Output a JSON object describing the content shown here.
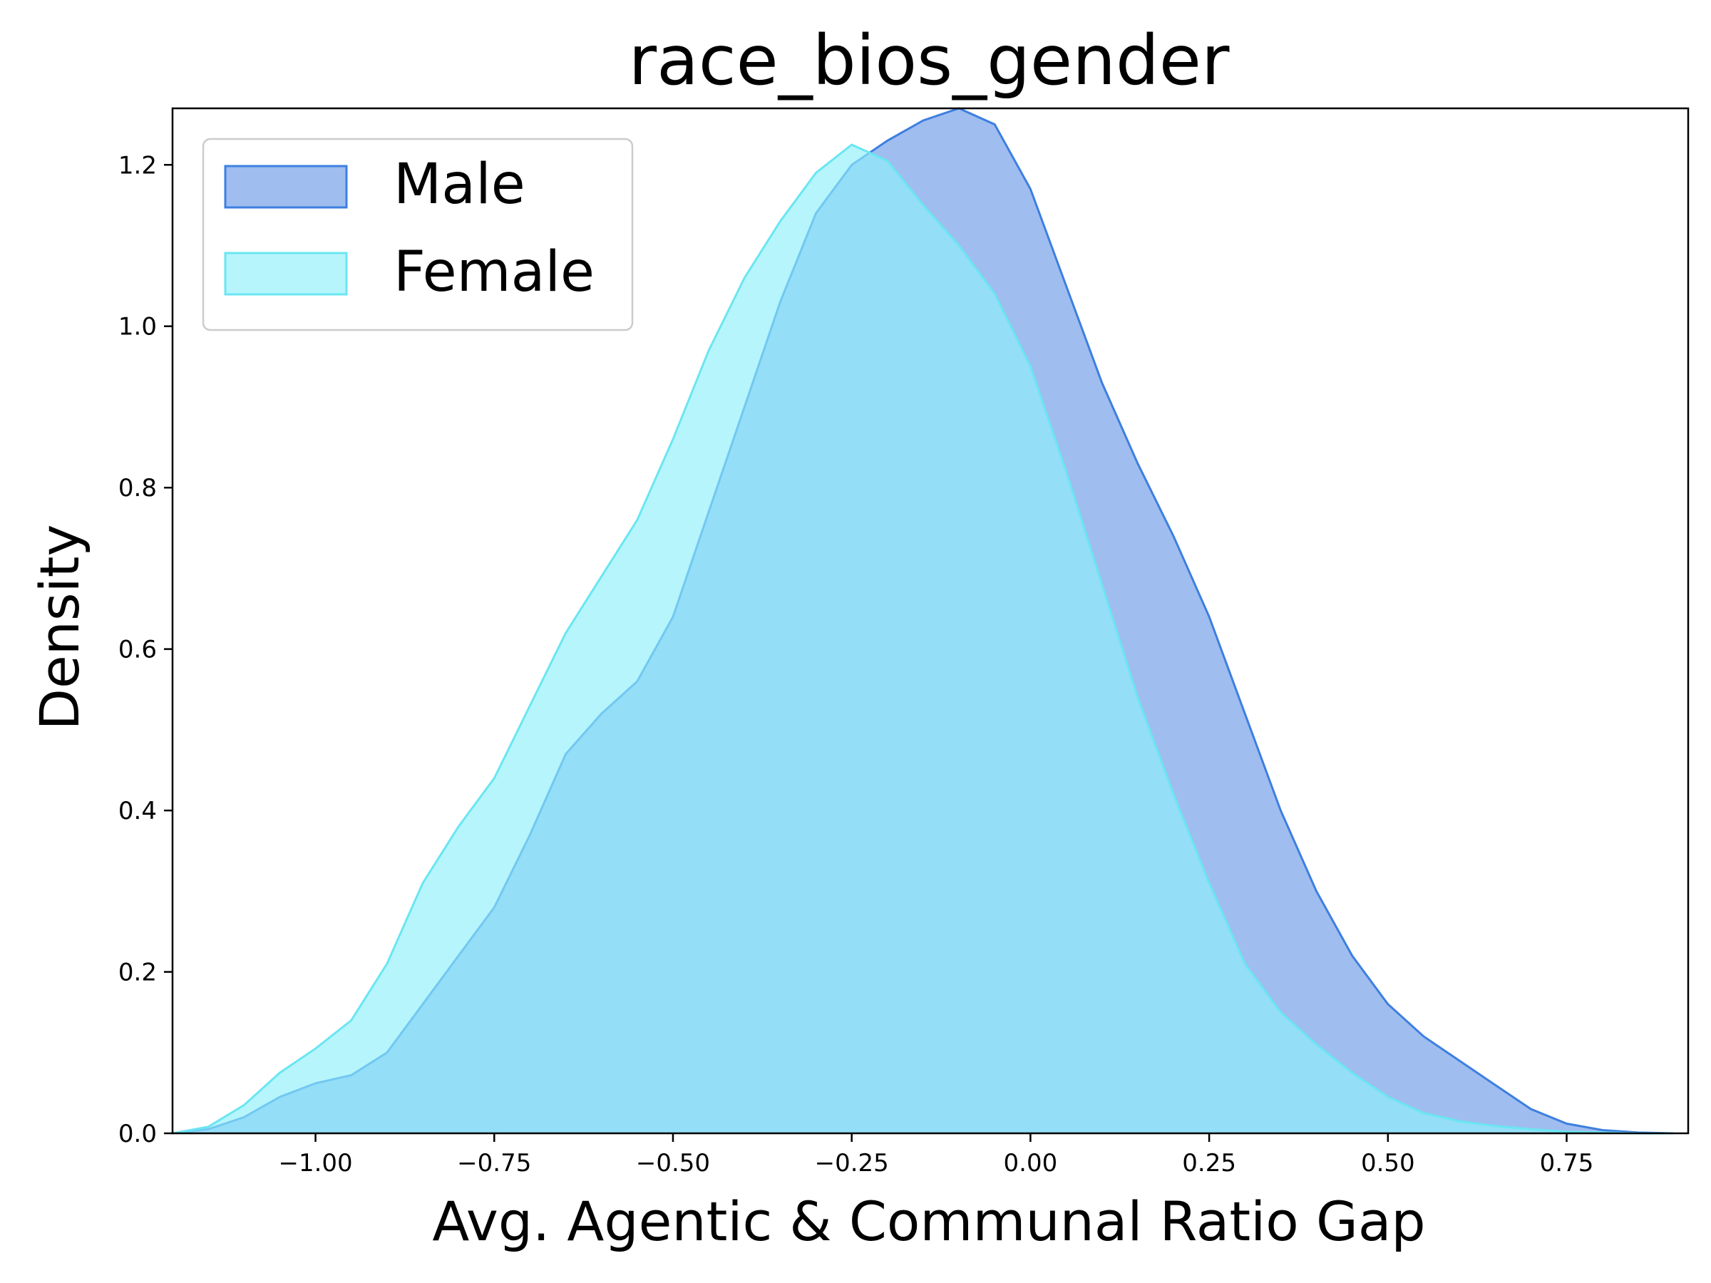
{
  "chart_data": {
    "type": "area",
    "title": "race_bios_gender",
    "xlabel": "Avg. Agentic & Communal Ratio Gap",
    "ylabel": "Density",
    "xlim": [
      -1.2,
      0.92
    ],
    "ylim": [
      0,
      1.27
    ],
    "xticks": [
      -1.0,
      -0.75,
      -0.5,
      -0.25,
      0.0,
      0.25,
      0.5,
      0.75
    ],
    "xtick_labels": [
      "−1.00",
      "−0.75",
      "−0.50",
      "−0.25",
      "0.00",
      "0.25",
      "0.50",
      "0.75"
    ],
    "yticks": [
      0.0,
      0.2,
      0.4,
      0.6,
      0.8,
      1.0,
      1.2
    ],
    "ytick_labels": [
      "0.0",
      "0.2",
      "0.4",
      "0.6",
      "0.8",
      "1.0",
      "1.2"
    ],
    "grid": false,
    "legend": {
      "position": "top-left"
    },
    "series": [
      {
        "name": "Male",
        "fill": "#6d9ae6",
        "stroke": "#3d7fe0",
        "points": [
          [
            -1.2,
            0.0
          ],
          [
            -1.15,
            0.005
          ],
          [
            -1.1,
            0.02
          ],
          [
            -1.05,
            0.045
          ],
          [
            -1.0,
            0.062
          ],
          [
            -0.95,
            0.072
          ],
          [
            -0.9,
            0.1
          ],
          [
            -0.85,
            0.16
          ],
          [
            -0.8,
            0.22
          ],
          [
            -0.75,
            0.28
          ],
          [
            -0.7,
            0.37
          ],
          [
            -0.65,
            0.47
          ],
          [
            -0.6,
            0.52
          ],
          [
            -0.55,
            0.56
          ],
          [
            -0.5,
            0.64
          ],
          [
            -0.45,
            0.77
          ],
          [
            -0.4,
            0.9
          ],
          [
            -0.35,
            1.03
          ],
          [
            -0.3,
            1.14
          ],
          [
            -0.25,
            1.2
          ],
          [
            -0.2,
            1.23
          ],
          [
            -0.15,
            1.255
          ],
          [
            -0.1,
            1.27
          ],
          [
            -0.05,
            1.25
          ],
          [
            0.0,
            1.17
          ],
          [
            0.05,
            1.05
          ],
          [
            0.1,
            0.93
          ],
          [
            0.15,
            0.83
          ],
          [
            0.2,
            0.74
          ],
          [
            0.25,
            0.64
          ],
          [
            0.3,
            0.52
          ],
          [
            0.35,
            0.4
          ],
          [
            0.4,
            0.3
          ],
          [
            0.45,
            0.22
          ],
          [
            0.5,
            0.16
          ],
          [
            0.55,
            0.12
          ],
          [
            0.6,
            0.09
          ],
          [
            0.65,
            0.06
          ],
          [
            0.7,
            0.03
          ],
          [
            0.75,
            0.012
          ],
          [
            0.8,
            0.004
          ],
          [
            0.85,
            0.001
          ],
          [
            0.9,
            0.0
          ]
        ]
      },
      {
        "name": "Female",
        "fill": "#8ff0fa",
        "stroke": "#6ae6f2",
        "points": [
          [
            -1.2,
            0.0
          ],
          [
            -1.15,
            0.008
          ],
          [
            -1.1,
            0.035
          ],
          [
            -1.05,
            0.075
          ],
          [
            -1.0,
            0.105
          ],
          [
            -0.95,
            0.14
          ],
          [
            -0.9,
            0.21
          ],
          [
            -0.85,
            0.31
          ],
          [
            -0.8,
            0.38
          ],
          [
            -0.75,
            0.44
          ],
          [
            -0.7,
            0.53
          ],
          [
            -0.65,
            0.62
          ],
          [
            -0.6,
            0.69
          ],
          [
            -0.55,
            0.76
          ],
          [
            -0.5,
            0.86
          ],
          [
            -0.45,
            0.97
          ],
          [
            -0.4,
            1.06
          ],
          [
            -0.35,
            1.13
          ],
          [
            -0.3,
            1.19
          ],
          [
            -0.25,
            1.225
          ],
          [
            -0.2,
            1.205
          ],
          [
            -0.15,
            1.15
          ],
          [
            -0.1,
            1.1
          ],
          [
            -0.05,
            1.04
          ],
          [
            0.0,
            0.95
          ],
          [
            0.05,
            0.82
          ],
          [
            0.1,
            0.68
          ],
          [
            0.15,
            0.54
          ],
          [
            0.2,
            0.42
          ],
          [
            0.25,
            0.31
          ],
          [
            0.3,
            0.21
          ],
          [
            0.35,
            0.15
          ],
          [
            0.4,
            0.11
          ],
          [
            0.45,
            0.075
          ],
          [
            0.5,
            0.045
          ],
          [
            0.55,
            0.025
          ],
          [
            0.6,
            0.015
          ],
          [
            0.65,
            0.009
          ],
          [
            0.7,
            0.005
          ],
          [
            0.75,
            0.002
          ],
          [
            0.8,
            0.001
          ],
          [
            0.85,
            0.0
          ],
          [
            0.9,
            0.0
          ]
        ]
      }
    ]
  }
}
